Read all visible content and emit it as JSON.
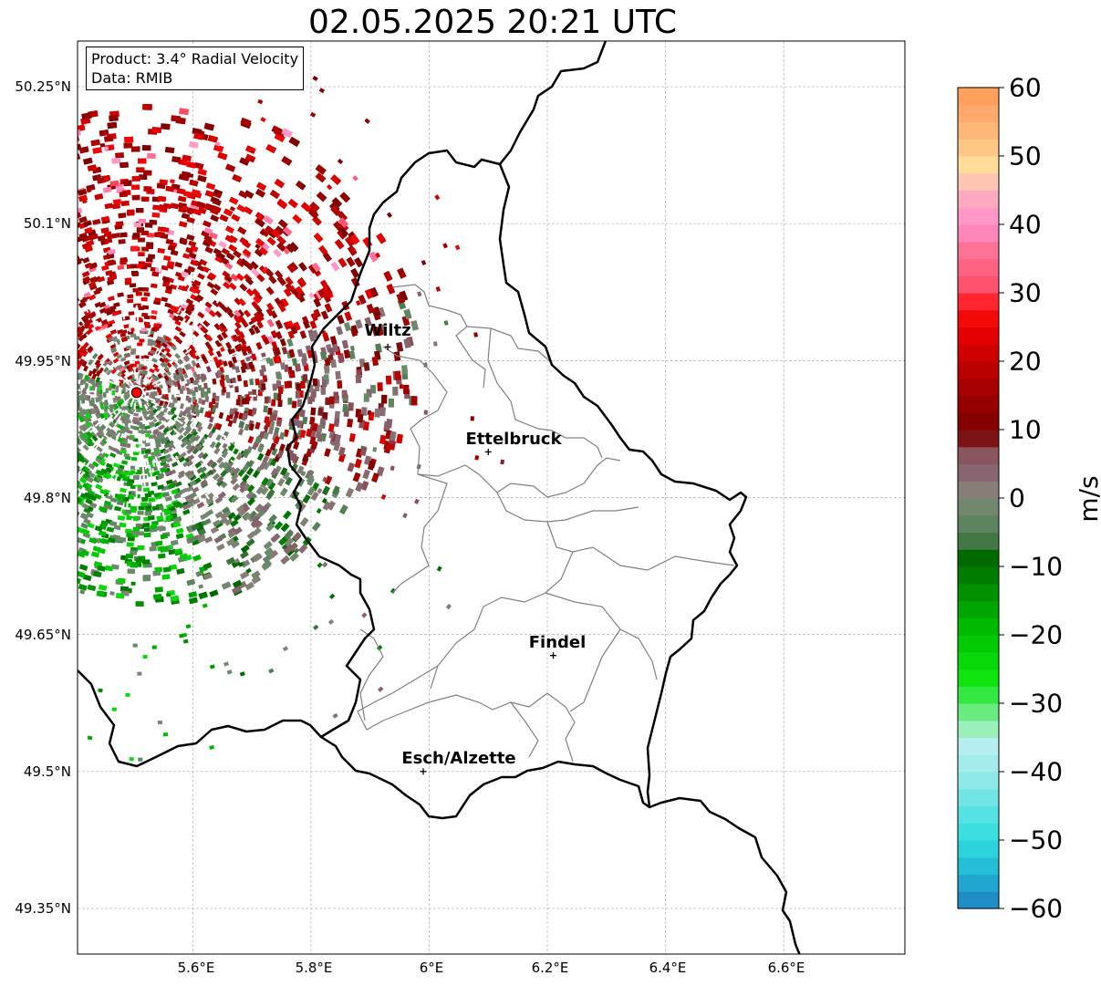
{
  "title": "02.05.2025 20:21 UTC",
  "info": {
    "product": "Product: 3.4° Radial Velocity",
    "data": "Data: RMIB"
  },
  "lat_labels": [
    "50.25°N",
    "50.1°N",
    "49.95°N",
    "49.8°N",
    "49.65°N",
    "49.5°N",
    "49.35°N"
  ],
  "lon_labels": [
    "5.6°E",
    "5.8°E",
    "6°E",
    "6.2°E",
    "6.4°E",
    "6.6°E"
  ],
  "cities": [
    {
      "name": "Wiltz",
      "lon": 5.93,
      "lat": 49.965
    },
    {
      "name": "Ettelbruck",
      "lon": 6.1,
      "lat": 49.85
    },
    {
      "name": "Findel",
      "lon": 6.21,
      "lat": 49.627
    },
    {
      "name": "Esch/Alzette",
      "lon": 5.99,
      "lat": 49.5
    }
  ],
  "radar_site": {
    "lon": 5.505,
    "lat": 49.915
  },
  "map_extent": {
    "lon_min": 5.405,
    "lon_max": 6.805,
    "lat_min": 49.3,
    "lat_max": 50.3
  },
  "colorbar": {
    "label": "m/s",
    "ticks": [
      "60",
      "50",
      "40",
      "30",
      "20",
      "10",
      "0",
      "−10",
      "−20",
      "−30",
      "−40",
      "−50",
      "−60"
    ],
    "min": -60,
    "max": 60,
    "stops": [
      {
        "v": -60,
        "c": "#1f7fc4"
      },
      {
        "v": -55,
        "c": "#22b3d4"
      },
      {
        "v": -50,
        "c": "#2fdede"
      },
      {
        "v": -45,
        "c": "#63e3e3"
      },
      {
        "v": -40,
        "c": "#9ce9ea"
      },
      {
        "v": -36,
        "c": "#b7eef0"
      },
      {
        "v": -33,
        "c": "#8ff0a8"
      },
      {
        "v": -30,
        "c": "#4de864"
      },
      {
        "v": -27,
        "c": "#10e810"
      },
      {
        "v": -20,
        "c": "#00c400"
      },
      {
        "v": -14,
        "c": "#009200"
      },
      {
        "v": -8,
        "c": "#006400"
      },
      {
        "v": -6,
        "c": "#4d7a50"
      },
      {
        "v": -2,
        "c": "#6a8a6c"
      },
      {
        "v": 1,
        "c": "#878078"
      },
      {
        "v": 4,
        "c": "#876470"
      },
      {
        "v": 8,
        "c": "#8a4a52"
      },
      {
        "v": 9,
        "c": "#770000"
      },
      {
        "v": 16,
        "c": "#a40000"
      },
      {
        "v": 24,
        "c": "#e60000"
      },
      {
        "v": 28,
        "c": "#ff1010"
      },
      {
        "v": 30,
        "c": "#ff4a64"
      },
      {
        "v": 36,
        "c": "#ff7095"
      },
      {
        "v": 40,
        "c": "#ff90c8"
      },
      {
        "v": 45,
        "c": "#ffb0c0"
      },
      {
        "v": 48,
        "c": "#ffe3a0"
      },
      {
        "v": 52,
        "c": "#ffc080"
      },
      {
        "v": 56,
        "c": "#ffaa70"
      },
      {
        "v": 60,
        "c": "#ff9a55"
      }
    ]
  }
}
